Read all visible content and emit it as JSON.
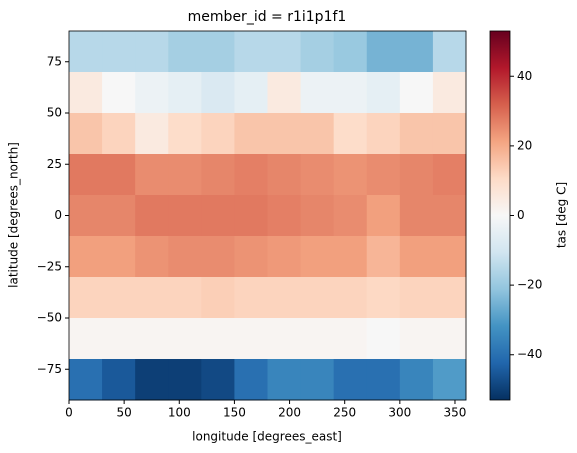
{
  "chart_data": {
    "type": "heatmap",
    "title": "member_id = r1i1p1f1",
    "x_label": "longitude [degrees_east]",
    "y_label": "latitude [degrees_north]",
    "colorbar_label": "tas [deg C]",
    "x": [
      15,
      45,
      75,
      105,
      135,
      165,
      195,
      225,
      255,
      285,
      315,
      345
    ],
    "y": [
      80,
      60,
      40,
      20,
      0,
      -20,
      -40,
      -60,
      -80
    ],
    "cell_width": 30,
    "cell_height": 20,
    "z": [
      [
        -15,
        -15,
        -15,
        -18,
        -18,
        -15,
        -15,
        -18,
        -20,
        -25,
        -25,
        -15
      ],
      [
        5,
        0,
        -3,
        -5,
        -8,
        -5,
        5,
        -3,
        -3,
        -5,
        0,
        5
      ],
      [
        15,
        12,
        5,
        10,
        12,
        15,
        15,
        15,
        10,
        12,
        15,
        15
      ],
      [
        28,
        28,
        25,
        25,
        26,
        27,
        26,
        25,
        24,
        25,
        26,
        27
      ],
      [
        26,
        26,
        28,
        28,
        28,
        28,
        27,
        26,
        25,
        22,
        26,
        26
      ],
      [
        22,
        22,
        24,
        25,
        25,
        24,
        23,
        22,
        22,
        18,
        22,
        22
      ],
      [
        12,
        12,
        12,
        12,
        13,
        12,
        12,
        12,
        12,
        11,
        12,
        12
      ],
      [
        1,
        1,
        1,
        1,
        1,
        1,
        1,
        1,
        1,
        0,
        1,
        1
      ],
      [
        -40,
        -45,
        -50,
        -50,
        -48,
        -40,
        -35,
        -35,
        -40,
        -40,
        -35,
        -30
      ]
    ],
    "xlim": [
      0,
      360
    ],
    "ylim": [
      -90,
      90
    ],
    "xticks": [
      0,
      50,
      100,
      150,
      200,
      250,
      300,
      350
    ],
    "yticks": [
      {
        "value": -75,
        "label": "−75"
      },
      {
        "value": -50,
        "label": "−50"
      },
      {
        "value": -25,
        "label": "−25"
      },
      0,
      25,
      50,
      75
    ],
    "clim": [
      -53,
      53
    ],
    "cticks": [
      {
        "value": -40,
        "label": "−40"
      },
      {
        "value": -20,
        "label": "−20"
      },
      0,
      20,
      40
    ],
    "colormap": [
      "#053061",
      "#2166ac",
      "#4393c3",
      "#92c5de",
      "#d1e5f0",
      "#f7f7f7",
      "#fddbc7",
      "#f4a582",
      "#d6604d",
      "#b2182b",
      "#67001f"
    ]
  }
}
